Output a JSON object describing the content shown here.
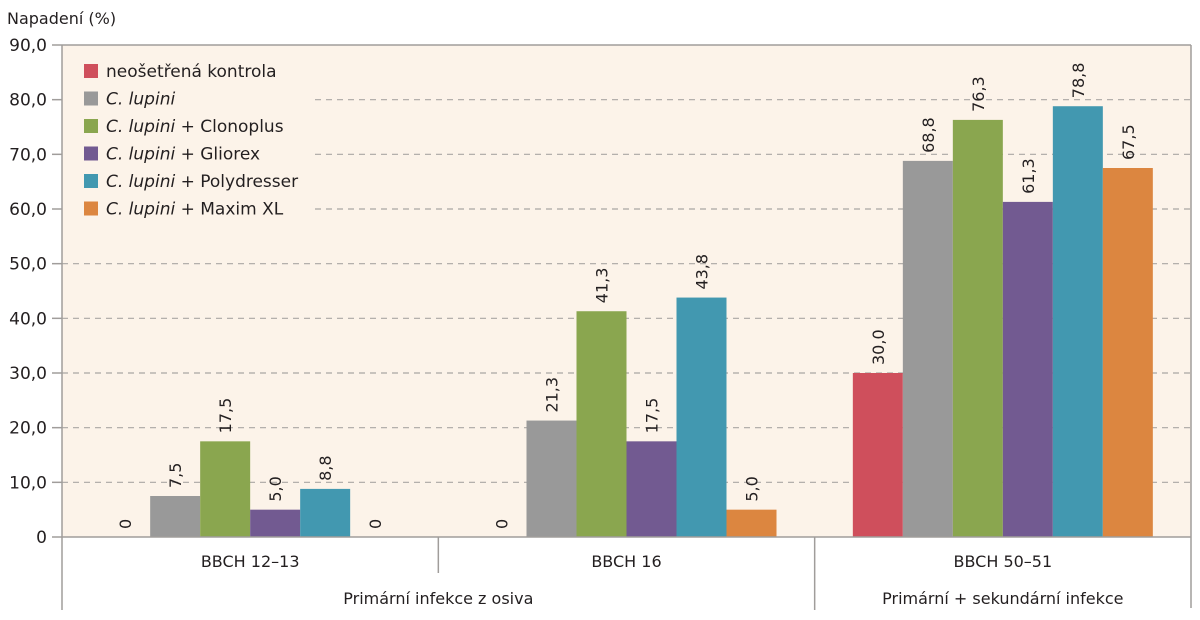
{
  "chart_data": {
    "type": "bar",
    "title": "",
    "ylabel": "Napadení (%)",
    "xlabel": "",
    "ylim": [
      0,
      90
    ],
    "yticks": [
      0,
      10,
      20,
      30,
      40,
      50,
      60,
      70,
      80,
      90
    ],
    "ytick_labels": [
      "0",
      "10,0",
      "20,0",
      "30,0",
      "40,0",
      "50,0",
      "60,0",
      "70,0",
      "80,0",
      "90,0"
    ],
    "grid": true,
    "legend_position": "top-left",
    "categories": [
      "BBCH 12–13",
      "BBCH 16",
      "BBCH 50–51"
    ],
    "category_groups": [
      {
        "label": "Primární infekce z osiva",
        "categories": [
          "BBCH 12–13",
          "BBCH 16"
        ]
      },
      {
        "label": "Primární + sekundární infekce",
        "categories": [
          "BBCH 50–51"
        ]
      }
    ],
    "series": [
      {
        "name": "neošetřená kontrola",
        "italic_part": "",
        "rest": "neošetřená kontrola",
        "color": "#cf4f5c",
        "values": [
          0,
          0,
          30.0
        ],
        "labels": [
          "0",
          "0",
          "30,0"
        ]
      },
      {
        "name": "C. lupini",
        "italic_part": "C. lupini",
        "rest": "",
        "color": "#999999",
        "values": [
          7.5,
          21.3,
          68.8
        ],
        "labels": [
          "7,5",
          "21,3",
          "68,8"
        ]
      },
      {
        "name": "C. lupini + Clonoplus",
        "italic_part": "C. lupini",
        "rest": " + Clonoplus",
        "color": "#8aa64f",
        "values": [
          17.5,
          41.3,
          76.3
        ],
        "labels": [
          "17,5",
          "41,3",
          "76,3"
        ]
      },
      {
        "name": "C. lupini + Gliorex",
        "italic_part": "C. lupini",
        "rest": " + Gliorex",
        "color": "#725a91",
        "values": [
          5.0,
          17.5,
          61.3
        ],
        "labels": [
          "5,0",
          "17,5",
          "61,3"
        ]
      },
      {
        "name": "C. lupini + Polydresser",
        "italic_part": "C. lupini",
        "rest": " + Polydresser",
        "color": "#4298b0",
        "values": [
          8.8,
          43.8,
          78.8
        ],
        "labels": [
          "8,8",
          "43,8",
          "78,8"
        ]
      },
      {
        "name": "C. lupini + Maxim XL",
        "italic_part": "C. lupini",
        "rest": " + Maxim XL",
        "color": "#dc8640",
        "values": [
          0,
          5.0,
          67.5
        ],
        "labels": [
          "0",
          "5,0",
          "67,5"
        ]
      }
    ],
    "colors": {
      "plot_background": "#fcf3e9",
      "axis": "#a09d9b",
      "grid": "#a9a6a3"
    }
  }
}
